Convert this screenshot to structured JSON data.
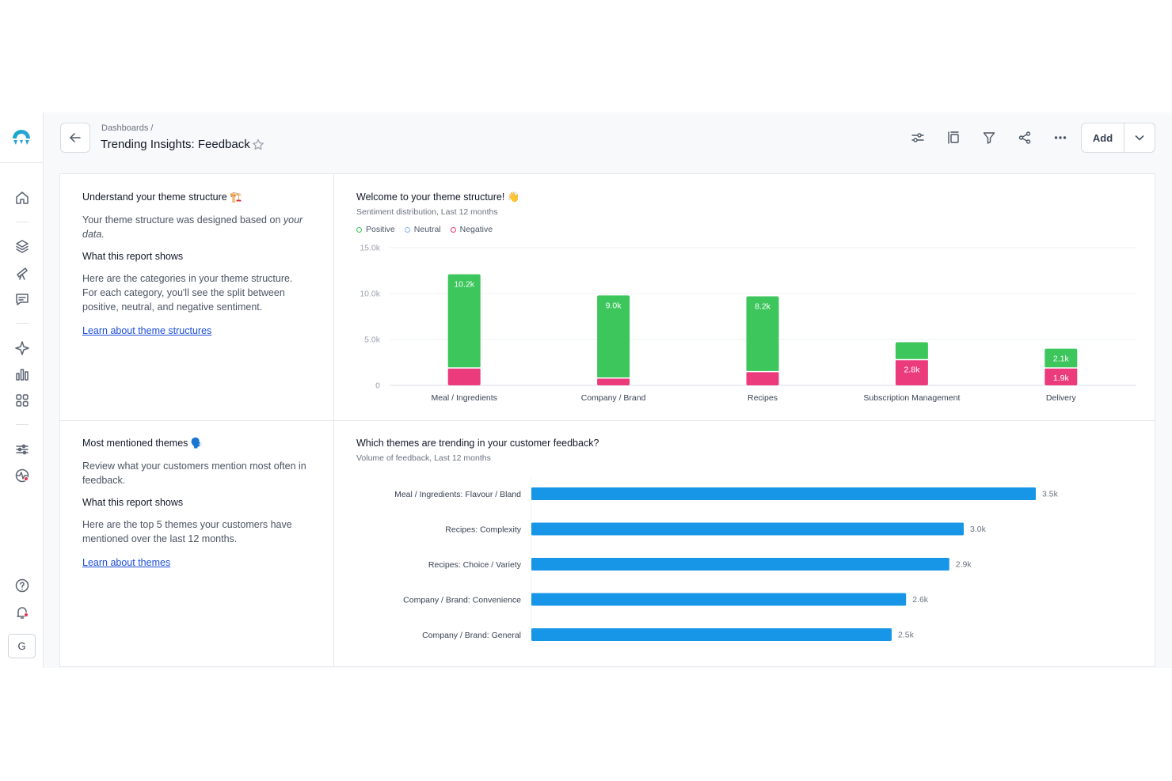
{
  "breadcrumb": "Dashboards /",
  "page_title": "Trending Insights: Feedback",
  "toolbar": {
    "add_label": "Add"
  },
  "user_initial": "G",
  "card1": {
    "title": "Understand your theme structure 🏗️",
    "desc_prefix": "Your theme structure was designed based on ",
    "desc_em": "your data.",
    "section": "What this report shows",
    "body": "Here are the categories in your theme structure. For each category, you'll see the split between positive, neutral, and negative sentiment.",
    "link": "Learn about theme structures"
  },
  "card2": {
    "title": "Most mentioned themes 🗣️",
    "desc": "Review what your customers mention most often in feedback.",
    "section": "What this report shows",
    "body": "Here are the top 5 themes your customers have mentioned over the last 12 months.",
    "link": "Learn about themes"
  },
  "chart1_head": {
    "title": "Welcome to your theme structure! 👋",
    "subtitle": "Sentiment distribution, Last 12 months",
    "legend": [
      "Positive",
      "Neutral",
      "Negative"
    ]
  },
  "chart2_head": {
    "title": "Which themes are trending in your customer feedback?",
    "subtitle": "Volume of feedback, Last 12 months"
  },
  "colors": {
    "positive": "#3cc65c",
    "neutral": "#8ab4f0",
    "negative": "#ec3b7c",
    "bar": "#1796e8",
    "accent": "#2ba3d9"
  },
  "chart_data": [
    {
      "type": "bar",
      "stacked": true,
      "title": "Welcome to your theme structure! 👋",
      "subtitle": "Sentiment distribution, Last 12 months",
      "categories": [
        "Meal / Ingredients",
        "Company / Brand",
        "Recipes",
        "Subscription Management",
        "Delivery"
      ],
      "series": [
        {
          "name": "Negative",
          "values": [
            1900,
            800,
            1500,
            2800,
            1900
          ],
          "labels": [
            "",
            "",
            "",
            "2.8k",
            "1.9k"
          ]
        },
        {
          "name": "Neutral",
          "values": [
            0,
            0,
            0,
            0,
            0
          ],
          "labels": [
            "",
            "",
            "",
            "",
            ""
          ]
        },
        {
          "name": "Positive",
          "values": [
            10200,
            9000,
            8200,
            1900,
            2100
          ],
          "labels": [
            "10.2k",
            "9.0k",
            "8.2k",
            "",
            "2.1k"
          ]
        }
      ],
      "yticks": [
        "0",
        "5.0k",
        "10.0k",
        "15.0k"
      ],
      "ylim": [
        0,
        15000
      ],
      "grid": true,
      "legend": "top-left"
    },
    {
      "type": "bar",
      "orientation": "horizontal",
      "title": "Which themes are trending in your customer feedback?",
      "subtitle": "Volume of feedback, Last 12 months",
      "categories": [
        "Meal / Ingredients: Flavour / Bland",
        "Recipes: Complexity",
        "Recipes: Choice / Variety",
        "Company / Brand: Convenience",
        "Company / Brand: General"
      ],
      "values": [
        3500,
        3000,
        2900,
        2600,
        2500
      ],
      "labels": [
        "3.5k",
        "3.0k",
        "2.9k",
        "2.6k",
        "2.5k"
      ]
    }
  ]
}
